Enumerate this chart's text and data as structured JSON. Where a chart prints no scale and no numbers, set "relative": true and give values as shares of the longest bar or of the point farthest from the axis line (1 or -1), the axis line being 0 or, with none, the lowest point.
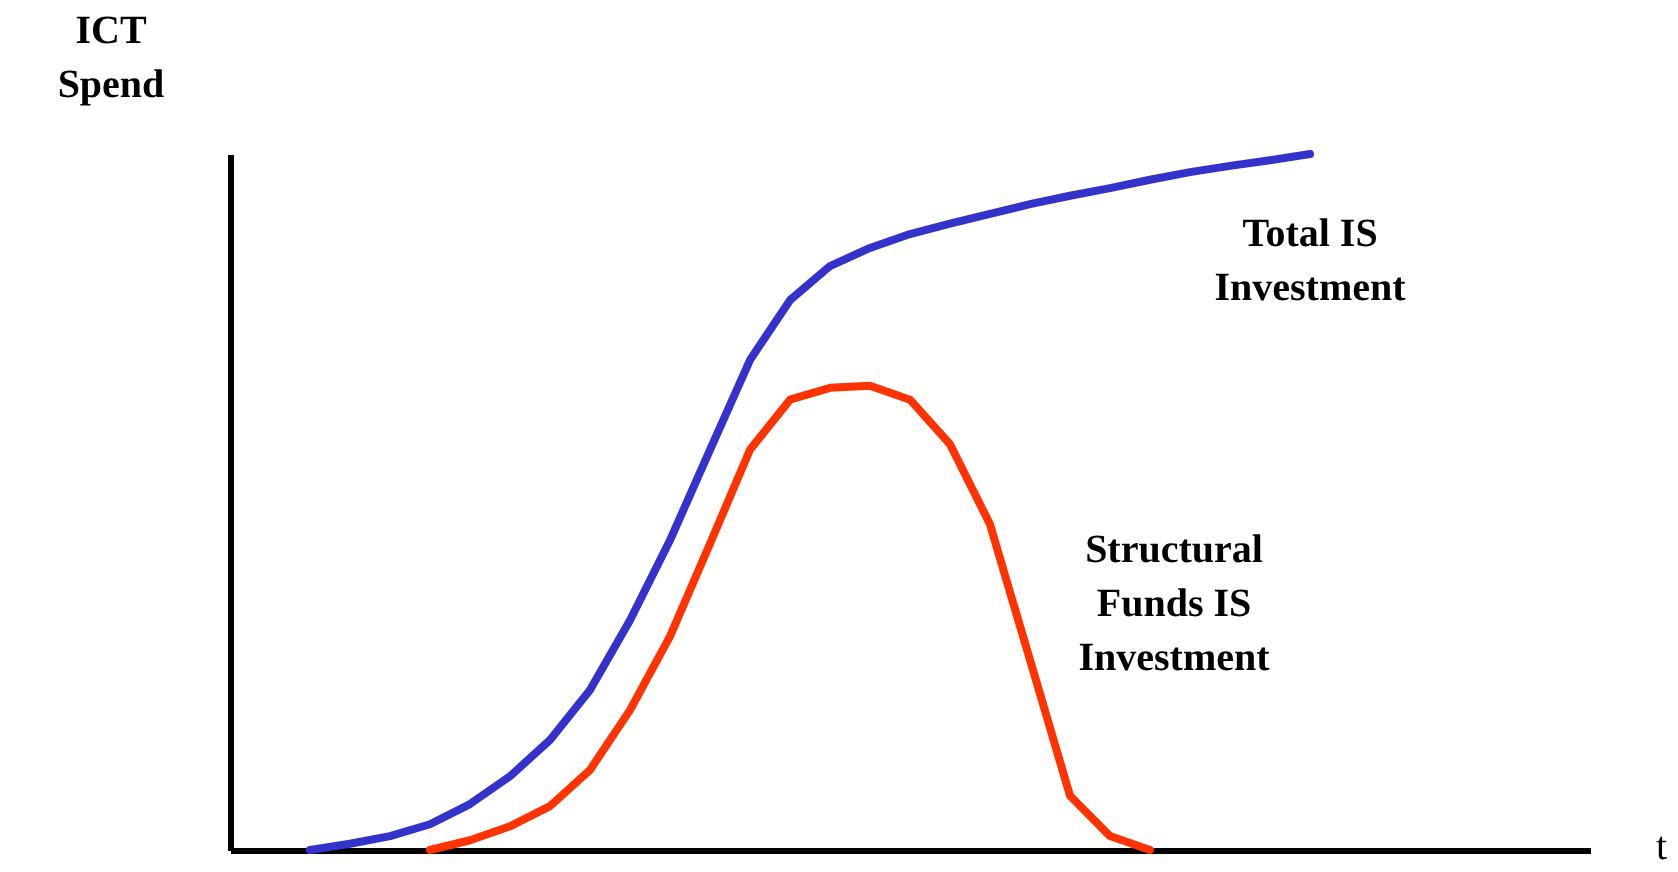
{
  "chart_data": {
    "type": "line",
    "relative": true,
    "xlabel": "t",
    "ylabel": "ICT Spend",
    "categories": [
      null,
      null,
      null,
      null,
      null,
      null,
      null,
      null,
      null,
      null,
      null,
      null,
      null,
      null,
      null,
      null,
      null,
      null,
      null,
      null,
      null,
      null,
      null,
      null,
      null,
      null,
      null,
      null,
      null,
      null,
      null,
      null,
      null,
      null,
      null
    ],
    "series": [
      {
        "name": "Total IS Investment",
        "color": "#3333cc",
        "values": [
          null,
          null,
          0,
          0.009,
          0.02,
          0.037,
          0.066,
          0.106,
          0.158,
          0.23,
          0.33,
          0.445,
          0.575,
          0.704,
          0.79,
          0.839,
          0.865,
          0.885,
          0.9,
          0.914,
          0.928,
          0.94,
          0.951,
          0.963,
          0.974,
          0.983,
          0.991,
          1,
          null,
          null,
          null,
          null,
          null,
          null,
          null
        ]
      },
      {
        "name": "Structural Funds IS Investment",
        "color": "#ff3300",
        "values": [
          null,
          null,
          null,
          null,
          null,
          0,
          0.014,
          0.034,
          0.063,
          0.115,
          0.201,
          0.307,
          0.44,
          0.575,
          0.647,
          0.664,
          0.667,
          0.647,
          0.583,
          0.468,
          0.273,
          0.078,
          0.02,
          0,
          null,
          null,
          null,
          null,
          null,
          null,
          null,
          null,
          null,
          null,
          null
        ]
      }
    ]
  }
}
